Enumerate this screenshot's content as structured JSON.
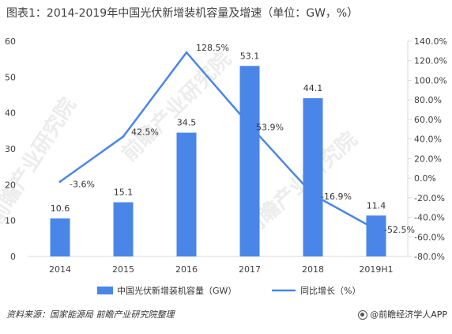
{
  "title": "图表1：2014-2019年中国光伏新增装机容量及增速（单位：GW，%）",
  "footer": {
    "source": "资料来源：国家能源局 前瞻产业研究院整理",
    "brand": "@前瞻经济学人APP",
    "brand_icon": "logo-circle-icon"
  },
  "watermark": [
    "前瞻产业研究院",
    "前瞻产业研究院",
    "前瞻产业研究院"
  ],
  "chart_data": {
    "type": "bar",
    "categories": [
      "2014",
      "2015",
      "2016",
      "2017",
      "2018",
      "2019H1"
    ],
    "series": [
      {
        "name": "中国光伏新增装机容量（GW）",
        "type": "bar",
        "axis": "left",
        "values": [
          10.6,
          15.1,
          34.5,
          53.1,
          44.1,
          11.4
        ],
        "labels": [
          "10.6",
          "15.1",
          "34.5",
          "53.1",
          "44.1",
          "11.4"
        ],
        "color": "#4a86e8"
      },
      {
        "name": "同比增长（%）",
        "type": "line",
        "axis": "right",
        "values": [
          -3.6,
          42.5,
          128.5,
          53.9,
          -16.9,
          -52.5
        ],
        "labels": [
          "-3.6%",
          "42.5%",
          "128.5%",
          "53.9%",
          "-16.9%",
          "-52.5%"
        ],
        "color": "#4a86e8"
      }
    ],
    "y_left": {
      "min": 0,
      "max": 60,
      "step": 10,
      "ticks": [
        "0",
        "10",
        "20",
        "30",
        "40",
        "50",
        "60"
      ]
    },
    "y_right": {
      "min": -80,
      "max": 140,
      "step": 20,
      "ticks": [
        "-80.0%",
        "-60.0%",
        "-40.0%",
        "-20.0%",
        "0.0%",
        "20.0%",
        "40.0%",
        "60.0%",
        "80.0%",
        "100.0%",
        "120.0%",
        "140.0%"
      ]
    },
    "grid": false,
    "legend_position": "bottom"
  }
}
